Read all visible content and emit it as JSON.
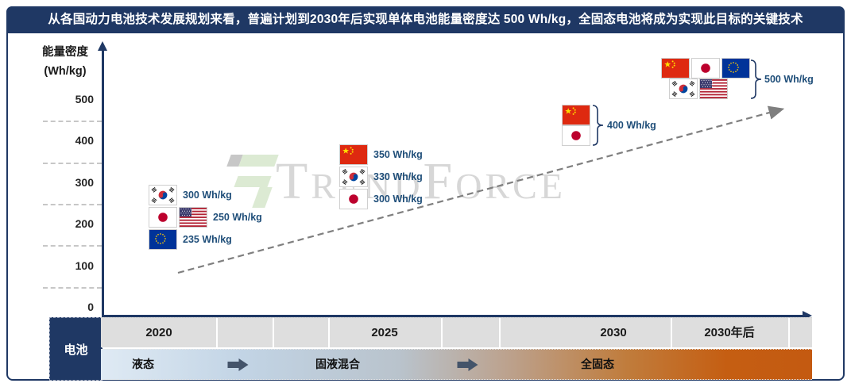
{
  "header": {
    "title": "从各国动力电池技术发展规划来看，普遍计划到2030年后实现单体电池能量密度达 500 Wh/kg，全固态电池将成为实现此目标的关键技术"
  },
  "y_axis": {
    "title_line1": "能量密度",
    "title_line2": "(Wh/kg)",
    "ticks": [
      0,
      100,
      200,
      300,
      400,
      500
    ]
  },
  "watermark": {
    "text": "TrendForce"
  },
  "bottom": {
    "row_header": "电池",
    "categories": [
      "2020",
      "2025",
      "2030",
      "2030年后"
    ],
    "phases": [
      "液态",
      "固液混合",
      "全固态"
    ]
  },
  "colors": {
    "navy": "#1F3864",
    "point_label_blue": "#1F4E79",
    "phase_arrow_slate": "#44546A",
    "solid_state_orange": "#C55A11",
    "trend_dash_gray": "#7F7F7F",
    "year_band_gray": "#DEDEDE"
  },
  "chart_data": {
    "type": "scatter",
    "title": "从各国动力电池技术发展规划来看，普遍计划到2030年后实现单体电池能量密度达 500 Wh/kg，全固态电池将成为实现此目标的关键技术",
    "xlabel": "",
    "ylabel": "能量密度 (Wh/kg)",
    "ylim": [
      0,
      500
    ],
    "yticks": [
      0,
      100,
      200,
      300,
      400,
      500
    ],
    "categories": [
      "2020",
      "2025",
      "2030",
      "2030年后"
    ],
    "points": [
      {
        "category": "2020",
        "countries": [
          "south-korea"
        ],
        "value": 300,
        "label": "300 Wh/kg",
        "bracket": false
      },
      {
        "category": "2020",
        "countries": [
          "japan",
          "usa"
        ],
        "value": 250,
        "label": "250 Wh/kg",
        "bracket": false
      },
      {
        "category": "2020",
        "countries": [
          "eu"
        ],
        "value": 235,
        "label": "235 Wh/kg",
        "bracket": false
      },
      {
        "category": "2025",
        "countries": [
          "china"
        ],
        "value": 350,
        "label": "350 Wh/kg",
        "bracket": false
      },
      {
        "category": "2025",
        "countries": [
          "south-korea"
        ],
        "value": 330,
        "label": "330 Wh/kg",
        "bracket": false
      },
      {
        "category": "2025",
        "countries": [
          "japan"
        ],
        "value": 300,
        "label": "300 Wh/kg",
        "bracket": false
      },
      {
        "category": "2030",
        "countries": [
          "china",
          "japan"
        ],
        "value": 400,
        "label": "400 Wh/kg",
        "bracket": true
      },
      {
        "category": "2030年后",
        "countries": [
          "china",
          "japan",
          "eu",
          "south-korea",
          "usa"
        ],
        "value": 500,
        "label": "500 Wh/kg",
        "bracket": true
      }
    ],
    "phases": [
      "液态",
      "固液混合",
      "全固态"
    ],
    "trend": "dashed-gray-arrow-rising",
    "legend_position": "none",
    "grid": "minor-dashes-left-of-axis"
  }
}
